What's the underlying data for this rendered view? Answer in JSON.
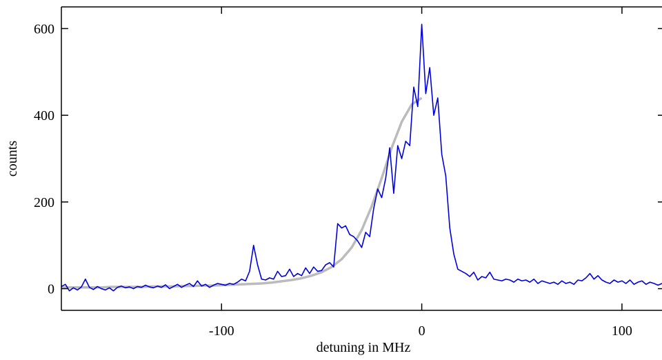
{
  "chart_data": {
    "type": "line",
    "xlabel": "detuning in MHz",
    "ylabel": "counts",
    "xlim": [
      -180,
      120
    ],
    "ylim": [
      -50,
      650
    ],
    "xticks": [
      -100,
      0,
      100
    ],
    "yticks": [
      0,
      200,
      400,
      600
    ],
    "series": [
      {
        "color": "#bbbbbb",
        "x": [
          -180,
          -175,
          -170,
          -165,
          -160,
          -155,
          -150,
          -145,
          -140,
          -135,
          -130,
          -125,
          -120,
          -115,
          -110,
          -105,
          -100,
          -95,
          -90,
          -85,
          -80,
          -75,
          -70,
          -65,
          -60,
          -55,
          -50,
          -45,
          -40,
          -35,
          -30,
          -25,
          -20,
          -15,
          -10,
          -5,
          0
        ],
        "values": [
          3,
          3,
          3,
          3,
          3,
          4,
          4,
          4,
          4,
          5,
          5,
          5,
          6,
          6,
          7,
          7,
          8,
          9,
          10,
          11,
          12,
          14,
          17,
          20,
          24,
          30,
          38,
          50,
          68,
          95,
          135,
          190,
          255,
          325,
          385,
          425,
          440
        ]
      },
      {
        "color": "#0000dd",
        "x": [
          -180,
          -178,
          -176,
          -174,
          -172,
          -170,
          -168,
          -166,
          -164,
          -162,
          -160,
          -158,
          -156,
          -154,
          -152,
          -150,
          -148,
          -146,
          -144,
          -142,
          -140,
          -138,
          -136,
          -134,
          -132,
          -130,
          -128,
          -126,
          -124,
          -122,
          -120,
          -118,
          -116,
          -114,
          -112,
          -110,
          -108,
          -106,
          -104,
          -102,
          -100,
          -98,
          -96,
          -94,
          -92,
          -90,
          -88,
          -86,
          -84,
          -82,
          -80,
          -78,
          -76,
          -74,
          -72,
          -70,
          -68,
          -66,
          -64,
          -62,
          -60,
          -58,
          -56,
          -54,
          -52,
          -50,
          -48,
          -46,
          -44,
          -42,
          -40,
          -38,
          -36,
          -34,
          -32,
          -30,
          -28,
          -26,
          -24,
          -22,
          -20,
          -18,
          -16,
          -14,
          -12,
          -10,
          -8,
          -6,
          -4,
          -2,
          0,
          2,
          4,
          6,
          8,
          10,
          12,
          14,
          16,
          18,
          20,
          22,
          24,
          26,
          28,
          30,
          32,
          34,
          36,
          38,
          40,
          42,
          44,
          46,
          48,
          50,
          52,
          54,
          56,
          58,
          60,
          62,
          64,
          66,
          68,
          70,
          72,
          74,
          76,
          78,
          80,
          82,
          84,
          86,
          88,
          90,
          92,
          94,
          96,
          98,
          100,
          102,
          104,
          106,
          108,
          110,
          112,
          114,
          116,
          118,
          120
        ],
        "values": [
          5,
          10,
          -5,
          2,
          -3,
          4,
          22,
          3,
          -2,
          5,
          0,
          -3,
          2,
          -5,
          3,
          6,
          2,
          4,
          0,
          5,
          3,
          8,
          4,
          2,
          6,
          3,
          9,
          0,
          5,
          10,
          3,
          8,
          12,
          5,
          18,
          6,
          10,
          3,
          8,
          12,
          10,
          8,
          12,
          10,
          15,
          22,
          18,
          40,
          100,
          55,
          22,
          20,
          25,
          22,
          40,
          28,
          30,
          45,
          28,
          35,
          30,
          48,
          35,
          50,
          40,
          42,
          55,
          60,
          50,
          150,
          140,
          145,
          125,
          120,
          110,
          95,
          130,
          120,
          185,
          230,
          210,
          255,
          325,
          220,
          330,
          300,
          340,
          330,
          465,
          420,
          610,
          450,
          510,
          400,
          440,
          310,
          260,
          140,
          80,
          45,
          40,
          35,
          28,
          38,
          20,
          28,
          25,
          38,
          22,
          20,
          18,
          22,
          20,
          15,
          22,
          18,
          20,
          15,
          22,
          12,
          18,
          15,
          12,
          15,
          10,
          18,
          12,
          15,
          10,
          20,
          18,
          25,
          35,
          22,
          30,
          20,
          15,
          12,
          20,
          15,
          18,
          12,
          20,
          10,
          15,
          18,
          10,
          15,
          12,
          8,
          12
        ]
      }
    ]
  }
}
